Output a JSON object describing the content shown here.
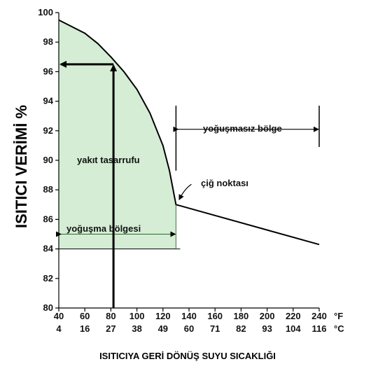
{
  "chart_data": {
    "type": "line",
    "title": "",
    "ylabel": "ISITICI VERİMİ %",
    "xlabel": "ISITICIYA GERİ DÖNÜŞ SUYU SICAKLIĞI",
    "xlim": [
      40,
      240
    ],
    "ylim": [
      80,
      100
    ],
    "x_unit_primary": "°F",
    "x_unit_secondary": "°C",
    "x_ticks_f": [
      "40",
      "60",
      "80",
      "100",
      "120",
      "140",
      "160",
      "180",
      "200",
      "220",
      "240"
    ],
    "x_ticks_c": [
      "4",
      "16",
      "27",
      "38",
      "49",
      "60",
      "71",
      "82",
      "93",
      "104",
      "116"
    ],
    "y_ticks": [
      "80",
      "82",
      "84",
      "86",
      "88",
      "90",
      "92",
      "94",
      "96",
      "98",
      "100"
    ],
    "series": [
      {
        "x": [
          40,
          60,
          70,
          80,
          90,
          100,
          110,
          120,
          125,
          130,
          240
        ],
        "y": [
          99.5,
          98.6,
          97.9,
          97.0,
          96.0,
          94.8,
          93.2,
          91.0,
          89.3,
          87.0,
          84.3
        ]
      }
    ],
    "annotations": {
      "fuel_savings": "yakıt tasarrufu",
      "condensing_zone": "yoğuşma bölgesi",
      "non_condensing_zone": "yoğuşmasız bölge",
      "dew_point": "çiğ noktası"
    },
    "condensing_range": [
      40,
      130
    ],
    "non_condensing_range": [
      130,
      240
    ],
    "dew_point": [
      130,
      87.0
    ],
    "example_point": {
      "x": 82,
      "y": 96.5
    },
    "shaded_region": {
      "x": [
        40,
        130
      ],
      "y_floor": 84
    },
    "grid": false,
    "colors": {
      "fill": "#d4edd4",
      "line": "#000000",
      "divider": "#3a7a3a"
    }
  }
}
